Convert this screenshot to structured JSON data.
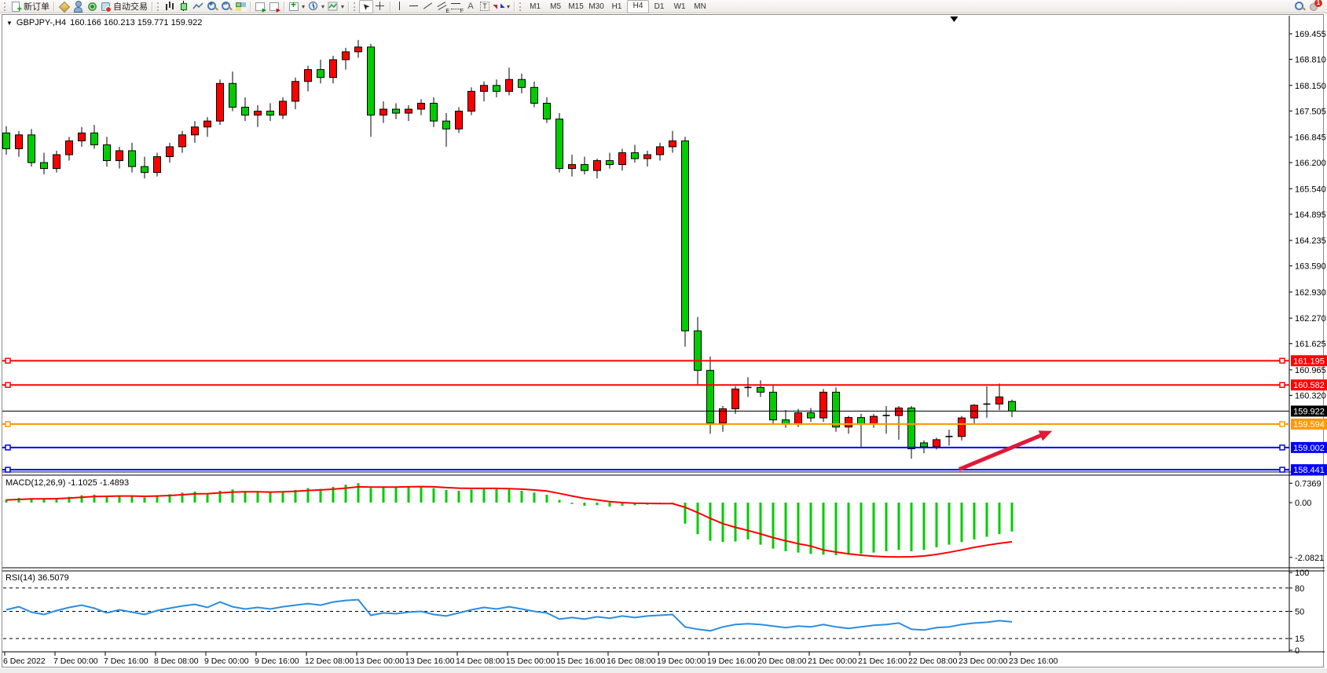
{
  "toolbar": {
    "new_order_label": "新订单",
    "auto_trading_label": "自动交易",
    "timeframes": [
      "M1",
      "M5",
      "M15",
      "M30",
      "H1",
      "H4",
      "D1",
      "W1",
      "MN"
    ],
    "active_timeframe": "H4",
    "notification_badge": "1"
  },
  "chart": {
    "title_symbol": "GBPJPY-,H4",
    "title_ohlc": "160.166 160.213 159.771 159.922",
    "current_price": "159.922"
  },
  "chart_data": {
    "type": "candlestick",
    "symbol": "GBPJPY-",
    "timeframe": "H4",
    "price_axis_ticks": [
      "169.455",
      "168.810",
      "168.150",
      "167.505",
      "166.845",
      "166.200",
      "165.540",
      "164.895",
      "164.235",
      "163.590",
      "162.930",
      "162.270",
      "161.625",
      "160.965",
      "160.320"
    ],
    "x_labels": [
      "6 Dec 2022",
      "7 Dec 00:00",
      "7 Dec 16:00",
      "8 Dec 08:00",
      "9 Dec 00:00",
      "9 Dec 16:00",
      "12 Dec 08:00",
      "13 Dec 00:00",
      "13 Dec 16:00",
      "14 Dec 08:00",
      "15 Dec 00:00",
      "15 Dec 16:00",
      "16 Dec 08:00",
      "19 Dec 00:00",
      "19 Dec 16:00",
      "20 Dec 08:00",
      "21 Dec 00:00",
      "21 Dec 16:00",
      "22 Dec 08:00",
      "23 Dec 00:00",
      "23 Dec 16:00"
    ],
    "x_label_bar_step": 4,
    "colors": {
      "up": "#ff0000",
      "down": "#00cc00",
      "doji": "#000000",
      "wick": "#000000",
      "macd_hist": "#00cc00",
      "macd_signal": "#ff0000",
      "rsi_line": "#2a8de0",
      "arrow": "#e01939"
    },
    "hlines": [
      {
        "label": "161.195",
        "value": 161.195,
        "color": "#ff0000",
        "width": 2,
        "handles": true
      },
      {
        "label": "160.582",
        "value": 160.582,
        "color": "#ff0000",
        "width": 2,
        "handles": true
      },
      {
        "label": "159.922",
        "value": 159.922,
        "color": "#000000",
        "width": 1,
        "handles": false,
        "is_price_line": true
      },
      {
        "label": "159.594",
        "value": 159.594,
        "color": "#ff9900",
        "width": 2,
        "handles": true
      },
      {
        "label": "159.002",
        "value": 159.002,
        "color": "#0000ff",
        "width": 2,
        "handles": true
      },
      {
        "label": "158.441",
        "value": 158.441,
        "color": "#0000ff",
        "width": 2,
        "handles": true
      }
    ],
    "arrow_annotation": {
      "x1_bar": 75.8,
      "y1_price": 158.45,
      "x2_bar": 83.2,
      "y2_price": 159.42
    },
    "shift_marker_bar": 75.4,
    "candles": [
      [
        166.95,
        167.12,
        166.4,
        166.55
      ],
      [
        166.55,
        167.0,
        166.35,
        166.9
      ],
      [
        166.9,
        167.05,
        166.1,
        166.2
      ],
      [
        166.2,
        166.45,
        165.9,
        166.05
      ],
      [
        166.05,
        166.5,
        165.95,
        166.4
      ],
      [
        166.4,
        166.85,
        166.25,
        166.75
      ],
      [
        166.75,
        167.1,
        166.6,
        166.95
      ],
      [
        166.95,
        167.15,
        166.55,
        166.65
      ],
      [
        166.65,
        166.85,
        166.1,
        166.25
      ],
      [
        166.25,
        166.6,
        166.05,
        166.5
      ],
      [
        166.5,
        166.7,
        165.95,
        166.1
      ],
      [
        166.1,
        166.35,
        165.8,
        165.95
      ],
      [
        165.95,
        166.45,
        165.85,
        166.35
      ],
      [
        166.35,
        166.7,
        166.2,
        166.6
      ],
      [
        166.6,
        167.0,
        166.45,
        166.9
      ],
      [
        166.9,
        167.25,
        166.7,
        167.1
      ],
      [
        167.1,
        167.35,
        166.85,
        167.25
      ],
      [
        167.25,
        168.3,
        167.15,
        168.2
      ],
      [
        168.2,
        168.5,
        167.5,
        167.6
      ],
      [
        167.6,
        167.85,
        167.25,
        167.4
      ],
      [
        167.4,
        167.65,
        167.1,
        167.5
      ],
      [
        167.5,
        167.7,
        167.25,
        167.4
      ],
      [
        167.4,
        167.85,
        167.3,
        167.75
      ],
      [
        167.75,
        168.35,
        167.55,
        168.25
      ],
      [
        168.25,
        168.65,
        168.0,
        168.55
      ],
      [
        168.55,
        168.8,
        168.2,
        168.35
      ],
      [
        168.35,
        168.9,
        168.2,
        168.8
      ],
      [
        168.8,
        169.1,
        168.55,
        169.0
      ],
      [
        169.0,
        169.3,
        168.85,
        169.12
      ],
      [
        169.12,
        169.2,
        166.85,
        167.4
      ],
      [
        167.4,
        167.75,
        167.2,
        167.55
      ],
      [
        167.55,
        167.7,
        167.3,
        167.45
      ],
      [
        167.45,
        167.65,
        167.25,
        167.55
      ],
      [
        167.55,
        167.8,
        167.4,
        167.7
      ],
      [
        167.7,
        167.85,
        167.1,
        167.25
      ],
      [
        167.25,
        167.45,
        166.6,
        167.05
      ],
      [
        167.05,
        167.6,
        166.95,
        167.5
      ],
      [
        167.5,
        168.1,
        167.4,
        168.0
      ],
      [
        168.0,
        168.25,
        167.75,
        168.15
      ],
      [
        168.15,
        168.3,
        167.85,
        168.0
      ],
      [
        168.0,
        168.6,
        167.9,
        168.3
      ],
      [
        168.3,
        168.45,
        167.95,
        168.1
      ],
      [
        168.1,
        168.25,
        167.6,
        167.7
      ],
      [
        167.7,
        167.85,
        167.2,
        167.3
      ],
      [
        167.3,
        167.45,
        165.95,
        166.05
      ],
      [
        166.05,
        166.4,
        165.85,
        166.15
      ],
      [
        166.15,
        166.35,
        165.9,
        166.0
      ],
      [
        166.0,
        166.3,
        165.8,
        166.25
      ],
      [
        166.25,
        166.45,
        166.05,
        166.15
      ],
      [
        166.15,
        166.55,
        166.0,
        166.45
      ],
      [
        166.45,
        166.65,
        166.2,
        166.3
      ],
      [
        166.3,
        166.5,
        166.1,
        166.4
      ],
      [
        166.4,
        166.7,
        166.25,
        166.6
      ],
      [
        166.6,
        167.0,
        166.45,
        166.75
      ],
      [
        166.75,
        166.85,
        161.55,
        161.95
      ],
      [
        161.95,
        162.3,
        160.6,
        160.95
      ],
      [
        160.95,
        161.3,
        159.35,
        159.62
      ],
      [
        159.62,
        160.05,
        159.4,
        159.98
      ],
      [
        159.98,
        160.55,
        159.85,
        160.48
      ],
      [
        160.48,
        160.78,
        160.28,
        160.52
      ],
      [
        160.52,
        160.7,
        160.28,
        160.4
      ],
      [
        160.4,
        160.6,
        159.58,
        159.7
      ],
      [
        159.7,
        159.95,
        159.5,
        159.6
      ],
      [
        159.6,
        159.98,
        159.52,
        159.88
      ],
      [
        159.88,
        160.0,
        159.65,
        159.75
      ],
      [
        159.75,
        160.48,
        159.65,
        160.4
      ],
      [
        160.4,
        160.52,
        159.4,
        159.52
      ],
      [
        159.52,
        159.8,
        159.35,
        159.76
      ],
      [
        159.76,
        159.85,
        158.98,
        159.6
      ],
      [
        159.6,
        159.85,
        159.5,
        159.79
      ],
      [
        159.79,
        160.05,
        159.35,
        159.81
      ],
      [
        159.81,
        160.05,
        159.2,
        160.0
      ],
      [
        160.0,
        160.05,
        158.72,
        158.97
      ],
      [
        159.12,
        159.18,
        158.86,
        159.02
      ],
      [
        159.02,
        159.25,
        158.95,
        159.2
      ],
      [
        159.25,
        159.45,
        159.05,
        159.28
      ],
      [
        159.28,
        159.8,
        159.18,
        159.75
      ],
      [
        159.75,
        160.1,
        159.6,
        160.07
      ],
      [
        160.07,
        160.55,
        159.75,
        160.1
      ],
      [
        160.1,
        160.62,
        159.95,
        160.28
      ],
      [
        160.166,
        160.213,
        159.771,
        159.922
      ]
    ],
    "macd": {
      "label": "MACD(12,26,9) -1.1025 -1.4893",
      "axis_labels": [
        "0.7369",
        "0.00",
        "-2.0821"
      ],
      "main_value": -1.1025,
      "signal_value": -1.4893,
      "histogram": [
        0.12,
        0.18,
        0.15,
        0.13,
        0.17,
        0.22,
        0.28,
        0.3,
        0.25,
        0.27,
        0.24,
        0.2,
        0.26,
        0.32,
        0.38,
        0.42,
        0.36,
        0.45,
        0.5,
        0.44,
        0.4,
        0.38,
        0.42,
        0.48,
        0.55,
        0.52,
        0.6,
        0.68,
        0.74,
        0.55,
        0.58,
        0.6,
        0.62,
        0.63,
        0.55,
        0.48,
        0.45,
        0.5,
        0.55,
        0.52,
        0.5,
        0.45,
        0.38,
        0.3,
        0.1,
        -0.05,
        -0.12,
        -0.1,
        -0.15,
        -0.12,
        -0.1,
        -0.08,
        -0.05,
        -0.02,
        -0.8,
        -1.2,
        -1.45,
        -1.5,
        -1.48,
        -1.4,
        -1.6,
        -1.75,
        -1.85,
        -1.9,
        -1.95,
        -1.98,
        -2.0,
        -1.98,
        -1.95,
        -1.9,
        -1.85,
        -1.8,
        -1.85,
        -1.8,
        -1.7,
        -1.6,
        -1.5,
        -1.4,
        -1.3,
        -1.2,
        -1.1
      ],
      "signal": [
        0.1,
        0.12,
        0.14,
        0.14,
        0.15,
        0.17,
        0.2,
        0.23,
        0.24,
        0.25,
        0.25,
        0.24,
        0.25,
        0.27,
        0.3,
        0.33,
        0.34,
        0.37,
        0.4,
        0.41,
        0.41,
        0.4,
        0.41,
        0.43,
        0.46,
        0.48,
        0.51,
        0.55,
        0.6,
        0.59,
        0.59,
        0.59,
        0.6,
        0.61,
        0.6,
        0.57,
        0.55,
        0.54,
        0.54,
        0.54,
        0.53,
        0.51,
        0.48,
        0.44,
        0.35,
        0.25,
        0.16,
        0.1,
        0.04,
        0.0,
        -0.02,
        -0.03,
        -0.04,
        -0.04,
        -0.18,
        -0.38,
        -0.6,
        -0.8,
        -0.94,
        -1.06,
        -1.19,
        -1.33,
        -1.45,
        -1.56,
        -1.65,
        -1.8,
        -1.88,
        -1.95,
        -2.0,
        -2.04,
        -2.06,
        -2.07,
        -2.06,
        -2.03,
        -1.97,
        -1.89,
        -1.8,
        -1.7,
        -1.62,
        -1.55,
        -1.49
      ]
    },
    "rsi": {
      "label": "RSI(14) 36.5079",
      "value": 36.5079,
      "axis_labels": [
        "100",
        "80",
        "50",
        "15",
        "0"
      ],
      "levels": [
        80,
        50,
        15
      ],
      "values": [
        52,
        56,
        49,
        46,
        51,
        55,
        58,
        54,
        48,
        52,
        49,
        46,
        51,
        54,
        57,
        59,
        55,
        62,
        56,
        53,
        55,
        53,
        56,
        58,
        60,
        58,
        62,
        64,
        65,
        45,
        48,
        47,
        49,
        50,
        46,
        44,
        48,
        52,
        55,
        53,
        56,
        53,
        50,
        48,
        40,
        42,
        40,
        43,
        41,
        44,
        42,
        44,
        45,
        46,
        30,
        27,
        25,
        30,
        33,
        34,
        33,
        31,
        29,
        31,
        30,
        33,
        30,
        28,
        30,
        32,
        33,
        35,
        27,
        26,
        29,
        30,
        33,
        35,
        36,
        38,
        36.5
      ]
    }
  }
}
